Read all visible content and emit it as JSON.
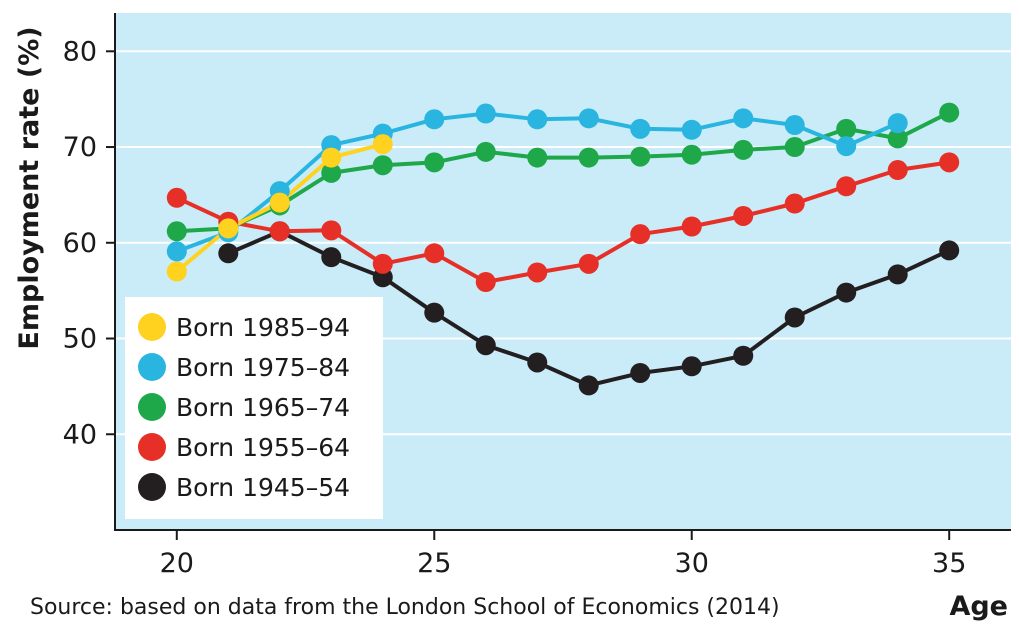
{
  "chart_data": {
    "type": "line",
    "title": "",
    "xlabel": "Age",
    "ylabel": "Employment rate (%)",
    "xlim": [
      18.8,
      36.2
    ],
    "ylim": [
      30,
      84
    ],
    "x_ticks": [
      20,
      25,
      30,
      35
    ],
    "y_ticks": [
      40,
      50,
      60,
      70,
      80
    ],
    "grid": "horizontal",
    "legend_position": "lower-left",
    "background_color": "#c9ecf8",
    "source": "Source: based on data from the London School of Economics (2014)",
    "series": [
      {
        "name": "Born 1945–54",
        "color": "#231f20",
        "x": [
          21,
          22,
          23,
          24,
          25,
          26,
          27,
          28,
          29,
          30,
          31,
          32,
          33,
          34,
          35
        ],
        "values": [
          58.9,
          61.2,
          58.5,
          56.4,
          52.7,
          49.3,
          47.5,
          45.1,
          46.4,
          47.1,
          48.2,
          52.2,
          54.8,
          56.7,
          59.2
        ]
      },
      {
        "name": "Born 1955–64",
        "color": "#e63027",
        "x": [
          20,
          21,
          22,
          23,
          24,
          25,
          26,
          27,
          28,
          29,
          30,
          31,
          32,
          33,
          34,
          35
        ],
        "values": [
          64.7,
          62.2,
          61.2,
          61.3,
          57.8,
          58.9,
          55.9,
          56.9,
          57.8,
          60.9,
          61.7,
          62.8,
          64.1,
          65.9,
          67.6,
          68.4
        ]
      },
      {
        "name": "Born 1965–74",
        "color": "#1fa84a",
        "x": [
          20,
          21,
          22,
          23,
          24,
          25,
          26,
          27,
          28,
          29,
          30,
          31,
          32,
          33,
          34,
          35
        ],
        "values": [
          61.2,
          61.5,
          63.9,
          67.3,
          68.1,
          68.4,
          69.5,
          68.9,
          68.9,
          69.0,
          69.2,
          69.7,
          70.0,
          71.9,
          70.9,
          73.6
        ]
      },
      {
        "name": "Born 1975–84",
        "color": "#29b5e0",
        "x": [
          20,
          21,
          22,
          23,
          24,
          25,
          26,
          27,
          28,
          29,
          30,
          31,
          32,
          33,
          34
        ],
        "values": [
          59.1,
          61.1,
          65.4,
          70.2,
          71.4,
          72.9,
          73.5,
          72.9,
          73.0,
          71.9,
          71.8,
          73.0,
          72.3,
          70.1,
          72.5
        ]
      },
      {
        "name": "Born 1985–94",
        "color": "#ffd21f",
        "x": [
          20,
          21,
          22,
          23,
          24
        ],
        "values": [
          57.0,
          61.5,
          64.2,
          68.9,
          70.3
        ]
      }
    ],
    "legend_order": [
      "Born 1985–94",
      "Born 1975–84",
      "Born 1965–74",
      "Born 1955–64",
      "Born 1945–54"
    ]
  }
}
